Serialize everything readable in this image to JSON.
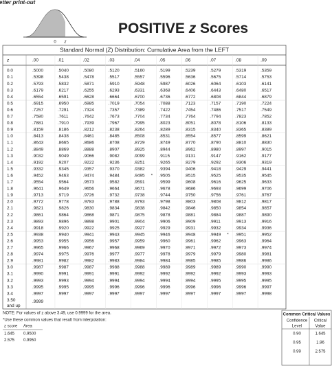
{
  "header": {
    "clipped_text": "getter print-out",
    "curve_labels": [
      "0",
      "z"
    ],
    "title_parts": [
      "POSITIVE ",
      "z",
      " Scores"
    ]
  },
  "table": {
    "caption": "Standard Normal (Z) Distribution: Cumulative Area from the LEFT",
    "columns": [
      "z",
      ".00",
      ".01",
      ".02",
      ".03",
      ".04",
      ".05",
      ".06",
      ".07",
      ".08",
      ".09"
    ],
    "rows": [
      [
        "0.0",
        ".5000",
        ".5040",
        ".5080",
        ".5120",
        ".5160",
        ".5199",
        ".5239",
        ".5279",
        ".5319",
        ".5359"
      ],
      [
        "0.1",
        ".5398",
        ".5438",
        ".5478",
        ".5517",
        ".5557",
        ".5596",
        ".5636",
        ".5675",
        ".5714",
        ".5753"
      ],
      [
        "0.2",
        ".5793",
        ".5832",
        ".5871",
        ".5910",
        ".5948",
        ".5987",
        ".6026",
        ".6064",
        ".6103",
        ".6141"
      ],
      [
        "0.3",
        ".6179",
        ".6217",
        ".6255",
        ".6293",
        ".6331",
        ".6368",
        ".6406",
        ".6443",
        ".6480",
        ".6517"
      ],
      [
        "0.4",
        ".6554",
        ".6591",
        ".6628",
        ".6664",
        ".6700",
        ".6736",
        ".6772",
        ".6808",
        ".6844",
        ".6879"
      ],
      [
        "0.5",
        ".6915",
        ".6950",
        ".6985",
        ".7019",
        ".7054",
        ".7088",
        ".7123",
        ".7157",
        ".7190",
        ".7224"
      ],
      [
        "0.6",
        ".7257",
        ".7291",
        ".7324",
        ".7357",
        ".7389",
        ".7422",
        ".7454",
        ".7486",
        ".7517",
        ".7549"
      ],
      [
        "0.7",
        ".7580",
        ".7611",
        ".7642",
        ".7673",
        ".7704",
        ".7734",
        ".7764",
        ".7794",
        ".7823",
        ".7852"
      ],
      [
        "0.8",
        ".7881",
        ".7910",
        ".7939",
        ".7967",
        ".7995",
        ".8023",
        ".8051",
        ".8078",
        ".8106",
        ".8133"
      ],
      [
        "0.9",
        ".8159",
        ".8186",
        ".8212",
        ".8238",
        ".8264",
        ".8289",
        ".8315",
        ".8340",
        ".8365",
        ".8389"
      ],
      [
        "1.0",
        ".8413",
        ".8438",
        ".8461",
        ".8485",
        ".8508",
        ".8531",
        ".8554",
        ".8577",
        ".8599",
        ".8621"
      ],
      [
        "1.1",
        ".8643",
        ".8665",
        ".8686",
        ".8708",
        ".8729",
        ".8749",
        ".8770",
        ".8790",
        ".8810",
        ".8830"
      ],
      [
        "1.2",
        ".8849",
        ".8869",
        ".8888",
        ".8907",
        ".8925",
        ".8944",
        ".8962",
        ".8980",
        ".8997",
        ".9015"
      ],
      [
        "1.3",
        ".9032",
        ".9049",
        ".9066",
        ".9082",
        ".9099",
        ".9115",
        ".9131",
        ".9147",
        ".9162",
        ".9177"
      ],
      [
        "1.4",
        ".9192",
        ".9207",
        ".9222",
        ".9236",
        ".9251",
        ".9265",
        ".9279",
        ".9292",
        ".9306",
        ".9319"
      ],
      [
        "1.5",
        ".9332",
        ".9345",
        ".9357",
        ".9370",
        ".9382",
        ".9394",
        ".9406",
        ".9418",
        ".9429",
        ".9441"
      ],
      [
        "1.6",
        ".9452",
        ".9463",
        ".9474",
        ".9484",
        ".9495",
        ".9505",
        ".9515",
        ".9525",
        ".9535",
        ".9545"
      ],
      [
        "1.7",
        ".9554",
        ".9564",
        ".9573",
        ".9582",
        ".9591",
        ".9599",
        ".9608",
        ".9616",
        ".9625",
        ".9633"
      ],
      [
        "1.8",
        ".9641",
        ".9649",
        ".9656",
        ".9664",
        ".9671",
        ".9678",
        ".9686",
        ".9693",
        ".9699",
        ".9706"
      ],
      [
        "1.9",
        ".9713",
        ".9719",
        ".9726",
        ".9732",
        ".9738",
        ".9744",
        ".9750",
        ".9756",
        ".9761",
        ".9767"
      ],
      [
        "2.0",
        ".9772",
        ".9778",
        ".9783",
        ".9788",
        ".9793",
        ".9798",
        ".9803",
        ".9808",
        ".9812",
        ".9817"
      ],
      [
        "2.1",
        ".9821",
        ".9826",
        ".9830",
        ".9834",
        ".9838",
        ".9842",
        ".9846",
        ".9850",
        ".9854",
        ".9857"
      ],
      [
        "2.2",
        ".9861",
        ".9864",
        ".9868",
        ".9871",
        ".9875",
        ".9878",
        ".9881",
        ".9884",
        ".9887",
        ".9890"
      ],
      [
        "2.3",
        ".9893",
        ".9896",
        ".9898",
        ".9901",
        ".9904",
        ".9906",
        ".9909",
        ".9911",
        ".9913",
        ".9916"
      ],
      [
        "2.4",
        ".9918",
        ".9920",
        ".9922",
        ".9925",
        ".9927",
        ".9929",
        ".9931",
        ".9932",
        ".9934",
        ".9936"
      ],
      [
        "2.5",
        ".9938",
        ".9940",
        ".9941",
        ".9943",
        ".9945",
        ".9946",
        ".9948",
        ".9949",
        ".9951",
        ".9952"
      ],
      [
        "2.6",
        ".9953",
        ".9955",
        ".9956",
        ".9957",
        ".9959",
        ".9960",
        ".9961",
        ".9962",
        ".9963",
        ".9964"
      ],
      [
        "2.7",
        ".9965",
        ".9966",
        ".9967",
        ".9968",
        ".9969",
        ".9970",
        ".9971",
        ".9972",
        ".9973",
        ".9974"
      ],
      [
        "2.8",
        ".9974",
        ".9975",
        ".9976",
        ".9977",
        ".9977",
        ".9978",
        ".9979",
        ".9979",
        ".9980",
        ".9981"
      ],
      [
        "2.9",
        ".9981",
        ".9982",
        ".9982",
        ".9983",
        ".9984",
        ".9984",
        ".9985",
        ".9985",
        ".9986",
        ".9986"
      ],
      [
        "3.0",
        ".9987",
        ".9987",
        ".9987",
        ".9988",
        ".9988",
        ".9989",
        ".9989",
        ".9989",
        ".9990",
        ".9990"
      ],
      [
        "3.1",
        ".9990",
        ".9991",
        ".9991",
        ".9991",
        ".9992",
        ".9992",
        ".9992",
        ".9992",
        ".9993",
        ".9993"
      ],
      [
        "3.2",
        ".9993",
        ".9993",
        ".9994",
        ".9994",
        ".9994",
        ".9994",
        ".9994",
        ".9995",
        ".9995",
        ".9995"
      ],
      [
        "3.3",
        ".9995",
        ".9995",
        ".9995",
        ".9996",
        ".9996",
        ".9996",
        ".9996",
        ".9996",
        ".9996",
        ".9997"
      ],
      [
        "3.4",
        ".9997",
        ".9997",
        ".9997",
        ".9997",
        ".9997",
        ".9997",
        ".9997",
        ".9997",
        ".9997",
        ".9998"
      ]
    ],
    "last_row": {
      "z": [
        "3.50",
        "and up"
      ],
      "value": ".9999"
    },
    "interpolation_marks": [
      "*",
      "*"
    ]
  },
  "notes": {
    "note": "NOTE: For values of z above 3.49, use 0.9999 for the area.",
    "interpolation_note": "*Use these common values that result from interpolation:",
    "interp_headers": [
      "z score",
      "Area"
    ],
    "interp_rows": [
      [
        "1.645",
        "0.9500"
      ],
      [
        "2.575",
        "0.9950"
      ]
    ]
  },
  "critical": {
    "title": "Common Critical Values",
    "headers": [
      [
        "Confidence",
        "Level"
      ],
      [
        "Critical",
        "Value"
      ]
    ],
    "rows": [
      [
        "0.90",
        "1.645"
      ],
      [
        "0.95",
        "1.96"
      ],
      [
        "0.99",
        "2.575"
      ]
    ]
  }
}
